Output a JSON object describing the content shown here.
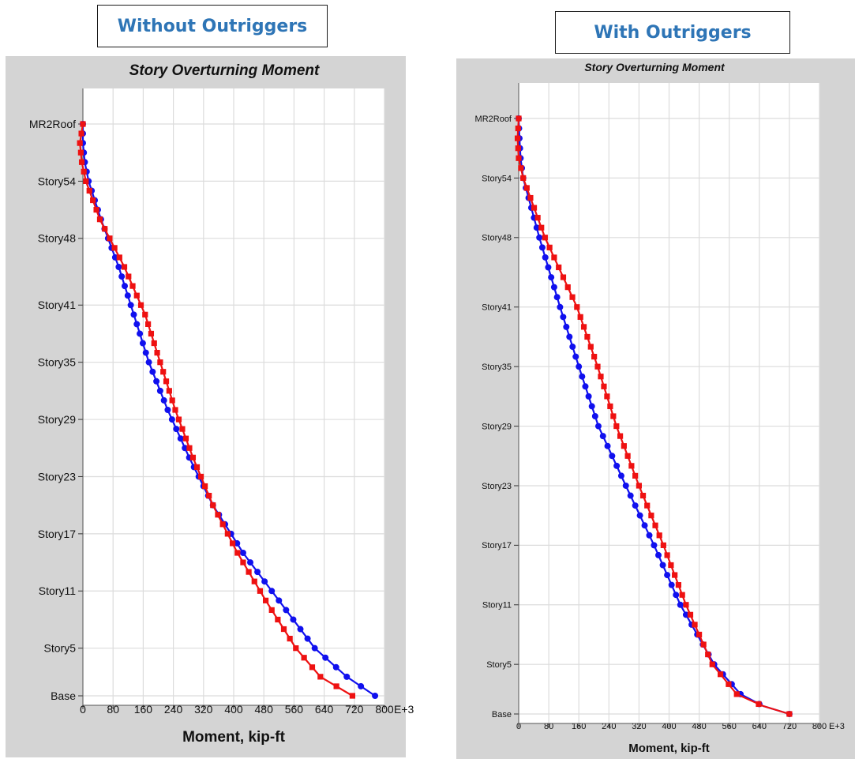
{
  "headings": {
    "left": "Without Outriggers",
    "right": "With Outriggers"
  },
  "colors": {
    "panel_bg": "#d4d4d4",
    "plot_bg": "#ffffff",
    "grid": "#dcdcdc",
    "heading_text": "#2e75b6",
    "series_blue": "#1010ee",
    "series_red": "#ee1111"
  },
  "chart_data": [
    {
      "type": "line",
      "title": "Story Overturning Moment",
      "xlabel": "Moment, kip-ft",
      "ylabel": "",
      "x_unit_suffix": "E+3",
      "xlim": [
        0,
        800
      ],
      "x_ticks": [
        0,
        80,
        160,
        240,
        320,
        400,
        480,
        560,
        640,
        720,
        800
      ],
      "y_ticks": [
        "Base",
        "Story5",
        "Story11",
        "Story17",
        "Story23",
        "Story29",
        "Story35",
        "Story41",
        "Story48",
        "Story54",
        "MR2Roof"
      ],
      "y_tick_levels": [
        0,
        5,
        11,
        17,
        23,
        29,
        35,
        41,
        48,
        54,
        60
      ],
      "grid": true,
      "legend": "none",
      "series": [
        {
          "color": "#1010ee",
          "marker": "circle",
          "points": [
            [
              0,
              60
            ],
            [
              0,
              58
            ],
            [
              5,
              56
            ],
            [
              15,
              54
            ],
            [
              48,
              50
            ],
            [
              95,
              45
            ],
            [
              135,
              40
            ],
            [
              175,
              35
            ],
            [
              225,
              30
            ],
            [
              282,
              25
            ],
            [
              345,
              20
            ],
            [
              425,
              15
            ],
            [
              520,
              10
            ],
            [
              615,
              5
            ],
            [
              700,
              2
            ],
            [
              775,
              0
            ]
          ]
        },
        {
          "color": "#ee1111",
          "marker": "square",
          "points": [
            [
              0,
              60
            ],
            [
              -8,
              58
            ],
            [
              -3,
              56
            ],
            [
              8,
              54
            ],
            [
              45,
              50
            ],
            [
              110,
              45
            ],
            [
              165,
              40
            ],
            [
              205,
              35
            ],
            [
              245,
              30
            ],
            [
              292,
              25
            ],
            [
              345,
              20
            ],
            [
              410,
              15
            ],
            [
              485,
              10
            ],
            [
              565,
              5
            ],
            [
              630,
              2
            ],
            [
              715,
              0
            ]
          ]
        }
      ]
    },
    {
      "type": "line",
      "title": "Story Overturning Moment",
      "xlabel": "Moment, kip-ft",
      "ylabel": "",
      "x_unit_suffix": "E+3",
      "xlim": [
        0,
        800
      ],
      "x_ticks": [
        0,
        80,
        160,
        240,
        320,
        400,
        480,
        560,
        640,
        720,
        800
      ],
      "y_ticks": [
        "Base",
        "Story5",
        "Story11",
        "Story17",
        "Story23",
        "Story29",
        "Story35",
        "Story41",
        "Story48",
        "Story54",
        "MR2Roof"
      ],
      "y_tick_levels": [
        0,
        5,
        11,
        17,
        23,
        29,
        35,
        41,
        48,
        54,
        60
      ],
      "grid": true,
      "legend": "none",
      "series": [
        {
          "color": "#1010ee",
          "marker": "circle",
          "points": [
            [
              0,
              60
            ],
            [
              2,
              58
            ],
            [
              5,
              56
            ],
            [
              12,
              54
            ],
            [
              55,
              48
            ],
            [
              110,
              41
            ],
            [
              160,
              35
            ],
            [
              212,
              29
            ],
            [
              285,
              23
            ],
            [
              360,
              17
            ],
            [
              430,
              11
            ],
            [
              520,
              5
            ],
            [
              590,
              2
            ],
            [
              650,
              0.8
            ],
            [
              720,
              0
            ]
          ]
        },
        {
          "color": "#ee1111",
          "marker": "square",
          "points": [
            [
              0,
              60
            ],
            [
              -3,
              58
            ],
            [
              0,
              56
            ],
            [
              12,
              54
            ],
            [
              70,
              48
            ],
            [
              155,
              41
            ],
            [
              210,
              35
            ],
            [
              260,
              29
            ],
            [
              320,
              23
            ],
            [
              385,
              17
            ],
            [
              445,
              11
            ],
            [
              515,
              5
            ],
            [
              580,
              2
            ],
            [
              650,
              0.8
            ],
            [
              720,
              0
            ]
          ]
        }
      ]
    }
  ]
}
